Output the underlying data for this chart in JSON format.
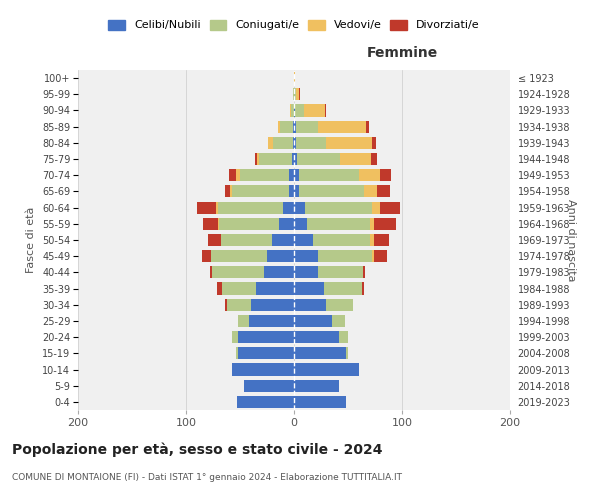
{
  "age_groups": [
    "0-4",
    "5-9",
    "10-14",
    "15-19",
    "20-24",
    "25-29",
    "30-34",
    "35-39",
    "40-44",
    "45-49",
    "50-54",
    "55-59",
    "60-64",
    "65-69",
    "70-74",
    "75-79",
    "80-84",
    "85-89",
    "90-94",
    "95-99",
    "100+"
  ],
  "birth_years": [
    "2019-2023",
    "2014-2018",
    "2009-2013",
    "2004-2008",
    "1999-2003",
    "1994-1998",
    "1989-1993",
    "1984-1988",
    "1979-1983",
    "1974-1978",
    "1969-1973",
    "1964-1968",
    "1959-1963",
    "1954-1958",
    "1949-1953",
    "1944-1948",
    "1939-1943",
    "1934-1938",
    "1929-1933",
    "1924-1928",
    "≤ 1923"
  ],
  "male": {
    "celibi": [
      53,
      46,
      57,
      52,
      52,
      42,
      40,
      35,
      28,
      25,
      20,
      14,
      10,
      5,
      5,
      2,
      1,
      1,
      0,
      0,
      0
    ],
    "coniugati": [
      0,
      0,
      0,
      2,
      5,
      10,
      22,
      32,
      48,
      52,
      48,
      55,
      60,
      52,
      45,
      30,
      18,
      12,
      3,
      1,
      0
    ],
    "vedovi": [
      0,
      0,
      0,
      0,
      0,
      0,
      0,
      0,
      0,
      0,
      0,
      1,
      2,
      2,
      4,
      2,
      5,
      2,
      1,
      0,
      0
    ],
    "divorziati": [
      0,
      0,
      0,
      0,
      0,
      0,
      2,
      4,
      2,
      8,
      12,
      14,
      18,
      5,
      6,
      2,
      0,
      0,
      0,
      0,
      0
    ]
  },
  "female": {
    "nubili": [
      48,
      42,
      60,
      48,
      42,
      35,
      30,
      28,
      22,
      22,
      18,
      12,
      10,
      5,
      5,
      3,
      2,
      2,
      1,
      0,
      0
    ],
    "coniugate": [
      0,
      0,
      0,
      2,
      8,
      12,
      25,
      35,
      42,
      50,
      52,
      58,
      62,
      60,
      55,
      40,
      28,
      20,
      8,
      2,
      0
    ],
    "vedove": [
      0,
      0,
      0,
      0,
      0,
      0,
      0,
      0,
      0,
      2,
      4,
      4,
      8,
      12,
      20,
      28,
      42,
      45,
      20,
      3,
      1
    ],
    "divorziate": [
      0,
      0,
      0,
      0,
      0,
      0,
      0,
      2,
      2,
      12,
      14,
      20,
      18,
      12,
      10,
      6,
      4,
      2,
      1,
      1,
      0
    ]
  },
  "colors": {
    "celibi": "#4472c4",
    "coniugati": "#b5c98a",
    "vedovi": "#f0c060",
    "divorziati": "#c0392b"
  },
  "title": "Popolazione per età, sesso e stato civile - 2024",
  "subtitle": "COMUNE DI MONTAIONE (FI) - Dati ISTAT 1° gennaio 2024 - Elaborazione TUTTITALIA.IT",
  "label_femmine": "Femmine",
  "ylabel_left": "Fasce di età",
  "ylabel_right": "Anni di nascita",
  "xlim": 200,
  "xticks": [
    -200,
    -100,
    0,
    100,
    200
  ],
  "xtick_labels": [
    "200",
    "100",
    "0",
    "100",
    "200"
  ],
  "legend_labels": [
    "Celibi/Nubili",
    "Coniugati/e",
    "Vedovi/e",
    "Divorziati/e"
  ],
  "bg_color": "#ffffff",
  "plot_bg_color": "#f0f0f0",
  "grid_color": "#cccccc"
}
